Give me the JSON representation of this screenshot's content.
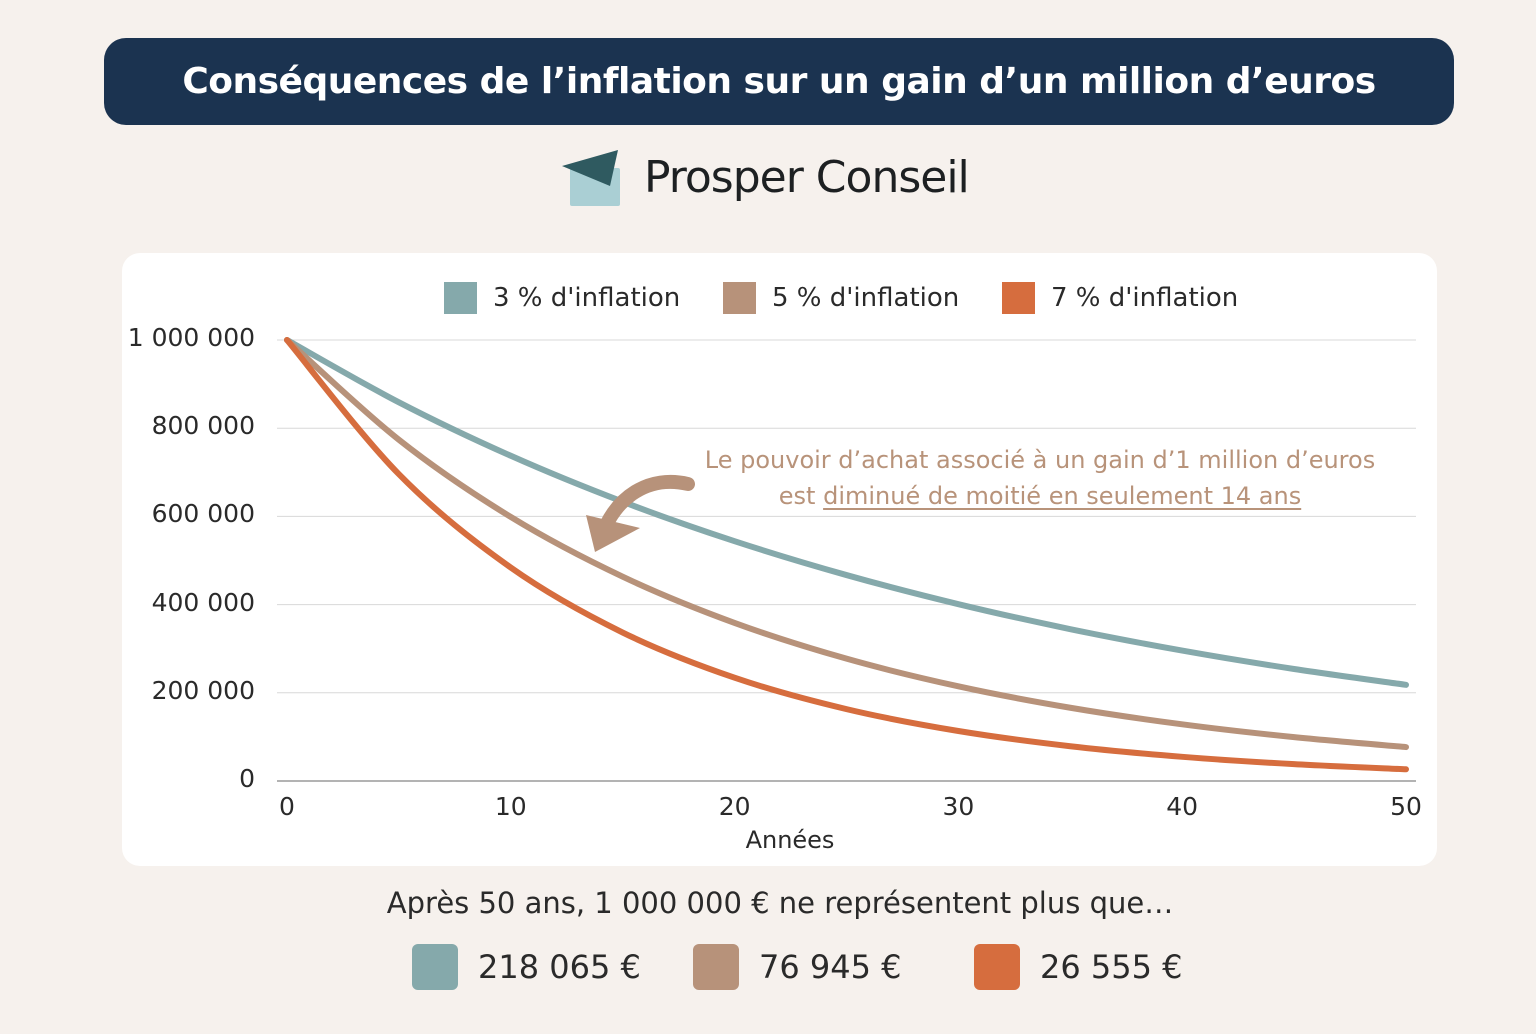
{
  "title": "Conséquences de l’inflation sur un gain d’un million d’euros",
  "brand": {
    "name": "Prosper Conseil",
    "logo": "paper-plane-envelope-logo"
  },
  "colors": {
    "background": "#f6f1ed",
    "title_bg": "#1b3350",
    "s1": "#85a9ab",
    "s2": "#b7927a",
    "s3": "#d66d3e",
    "note": "#b8937a"
  },
  "annotation": {
    "line1": "Le pouvoir d’achat associé à un gain d’1 million d’euros",
    "line2_prefix": "est ",
    "line2_underlined": "diminué de moitié en seulement 14 ans"
  },
  "summary": {
    "text": "Après 50 ans, 1 000 000 € ne représentent plus que…",
    "values": [
      "218 065 €",
      "76 945 €",
      "26 555 €"
    ]
  },
  "chart_data": {
    "type": "line",
    "xlabel": "Années",
    "ylabel": "",
    "xlim": [
      0,
      50
    ],
    "ylim": [
      0,
      1000000
    ],
    "x_ticks": [
      "0",
      "10",
      "20",
      "30",
      "40",
      "50"
    ],
    "y_ticks": [
      "0",
      "200 000",
      "400 000",
      "600 000",
      "800 000",
      "1 000 000"
    ],
    "grid": "horizontal",
    "legend": "top",
    "x": [
      0,
      5,
      10,
      15,
      20,
      25,
      30,
      35,
      40,
      45,
      50
    ],
    "series": [
      {
        "name": "3 % d'inflation",
        "color": "#85a9ab",
        "values": [
          1000000,
          858734,
          737424,
          633251,
          543794,
          466976,
          401007,
          344358,
          295712,
          253938,
          218065
        ]
      },
      {
        "name": "5 % d'inflation",
        "color": "#b7927a",
        "values": [
          1000000,
          773781,
          598737,
          463291,
          358486,
          277390,
          214639,
          166084,
          128512,
          99441,
          76945
        ]
      },
      {
        "name": "7 % d'inflation",
        "color": "#d66d3e",
        "values": [
          1000000,
          695688,
          483982,
          336701,
          234239,
          162957,
          113368,
          78869,
          54868,
          38171,
          26555
        ]
      }
    ]
  }
}
